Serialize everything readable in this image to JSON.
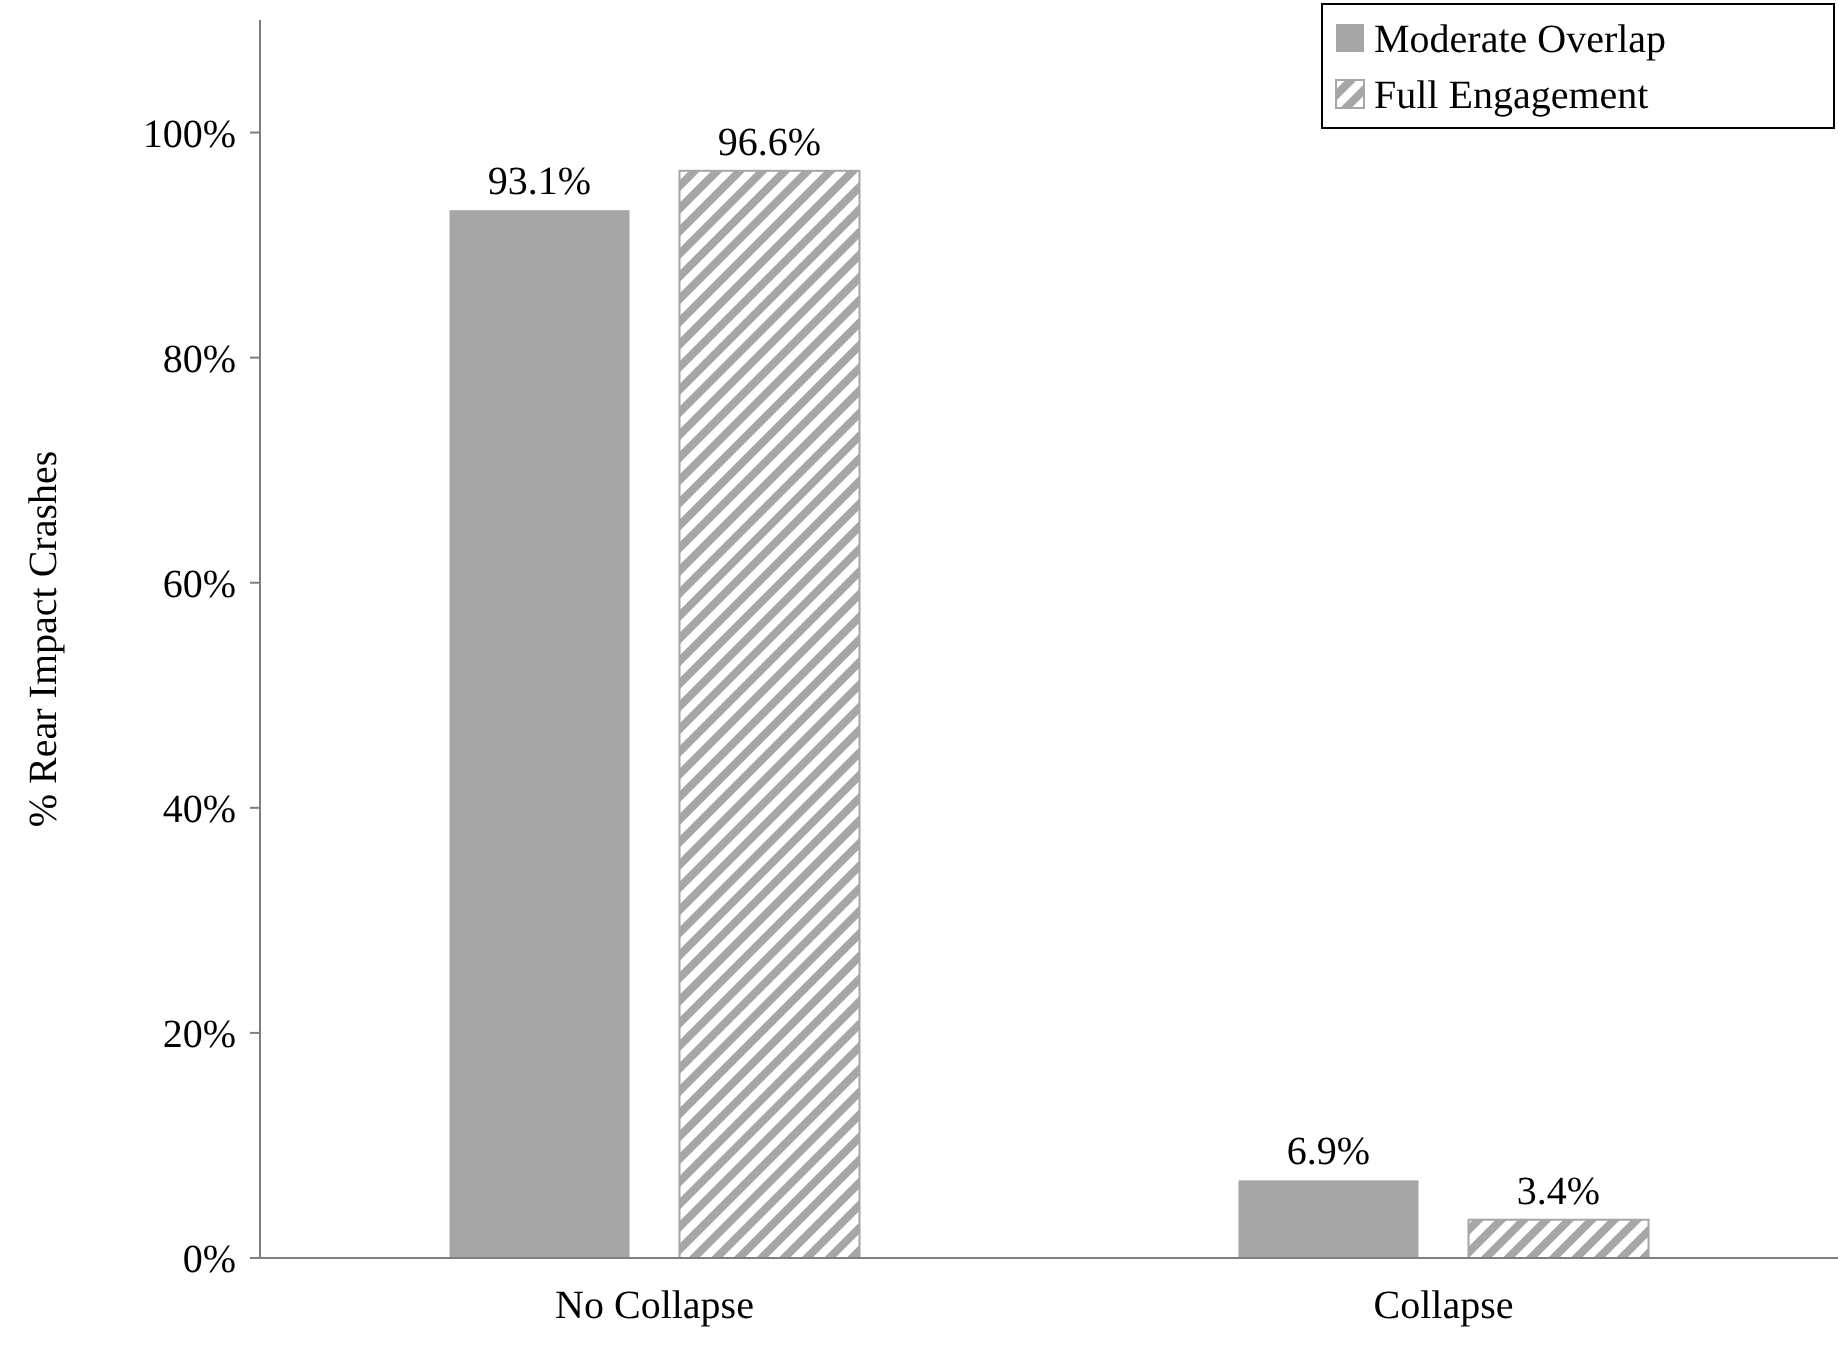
{
  "chart_data": {
    "type": "bar",
    "ylabel": "% Rear Impact Crashes",
    "categories": [
      "No Collapse",
      "Collapse"
    ],
    "series": [
      {
        "name": "Moderate Overlap",
        "color": "#a6a6a6",
        "values": [
          93.1,
          6.9
        ],
        "value_labels": [
          "93.1%",
          "6.9%"
        ]
      },
      {
        "name": "Full Engagement",
        "color": "#a6a6a6",
        "values": [
          96.6,
          3.4
        ],
        "value_labels": [
          "96.6%",
          "3.4%"
        ]
      }
    ],
    "ylim": [
      0,
      110
    ],
    "yticks": [
      {
        "value": 0,
        "label": "0%"
      },
      {
        "value": 20,
        "label": "20%"
      },
      {
        "value": 40,
        "label": "40%"
      },
      {
        "value": 60,
        "label": "60%"
      },
      {
        "value": 80,
        "label": "80%"
      },
      {
        "value": 100,
        "label": "100%"
      }
    ],
    "legend": "top right"
  }
}
